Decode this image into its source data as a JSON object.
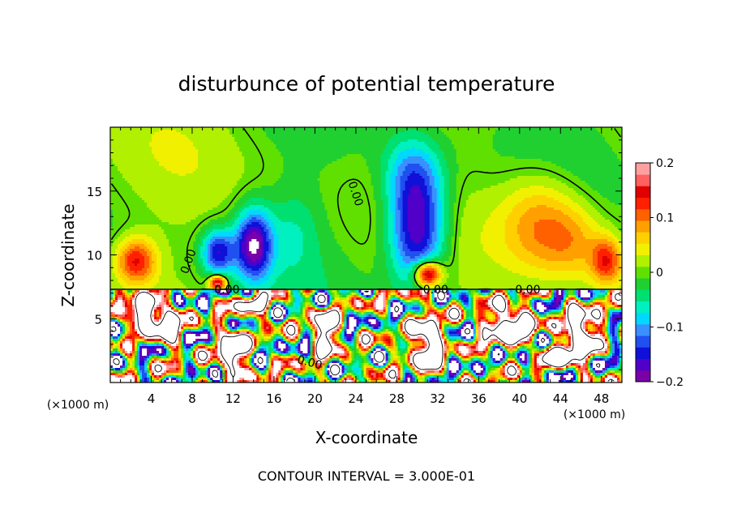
{
  "chart_data": {
    "type": "heatmap",
    "title": "disturbunce of potential temperature",
    "xlabel": "X-coordinate",
    "ylabel": "Z-coordinate",
    "x_unit_left": "(×1000 m)",
    "x_unit_right": "(×1000 m)",
    "footer": "CONTOUR INTERVAL = 3.000E-01",
    "xlim": [
      0,
      50
    ],
    "ylim": [
      0,
      20
    ],
    "x_ticks": [
      "4",
      "8",
      "12",
      "16",
      "20",
      "24",
      "28",
      "32",
      "36",
      "40",
      "44",
      "48"
    ],
    "y_ticks": [
      "5",
      "10",
      "15"
    ],
    "colorbar": {
      "range": [
        -0.2,
        0.2
      ],
      "tick_labels": [
        "0.2",
        "0.1",
        "0",
        "−0.1",
        "−0.2"
      ],
      "colors": [
        "#7a00a8",
        "#5000c8",
        "#1010d8",
        "#2050f0",
        "#3a90ff",
        "#00d8ff",
        "#00f0c0",
        "#00e070",
        "#20d030",
        "#60e000",
        "#b0f000",
        "#f0f000",
        "#ffd000",
        "#ffa000",
        "#ff6000",
        "#ff2000",
        "#e00000",
        "#ff6060",
        "#ffa0a0"
      ]
    },
    "contour_labels": [
      "0.00",
      "0.00",
      "0.00",
      "0.00",
      "0.00",
      "0.00"
    ],
    "blobs": [
      {
        "x": 10.5,
        "z": 10.2,
        "sx": 1.6,
        "sz": 1.8,
        "v": -0.15
      },
      {
        "x": 14.0,
        "z": 10.8,
        "sx": 1.8,
        "sz": 2.8,
        "v": -0.19
      },
      {
        "x": 18.0,
        "z": 12.0,
        "sx": 2.5,
        "sz": 3.5,
        "v": -0.04
      },
      {
        "x": 30.0,
        "z": 12.0,
        "sx": 2.8,
        "sz": 4.5,
        "v": -0.2
      },
      {
        "x": 29.5,
        "z": 16.5,
        "sx": 3.0,
        "sz": 3.0,
        "v": -0.08
      },
      {
        "x": 2.5,
        "z": 9.5,
        "sx": 2.0,
        "sz": 1.8,
        "v": 0.14
      },
      {
        "x": 42.0,
        "z": 12.5,
        "sx": 4.0,
        "sz": 4.0,
        "v": 0.1
      },
      {
        "x": 45.5,
        "z": 11.0,
        "sx": 3.0,
        "sz": 3.0,
        "v": 0.06
      },
      {
        "x": 31.0,
        "z": 8.5,
        "sx": 1.3,
        "sz": 1.0,
        "v": 0.22
      },
      {
        "x": 10.5,
        "z": 7.8,
        "sx": 0.8,
        "sz": 0.6,
        "v": 0.2
      },
      {
        "x": 24.0,
        "z": 16.0,
        "sx": 3.0,
        "sz": 3.0,
        "v": 0.0
      },
      {
        "x": 48.5,
        "z": 9.5,
        "sx": 1.5,
        "sz": 1.8,
        "v": 0.12
      }
    ]
  }
}
